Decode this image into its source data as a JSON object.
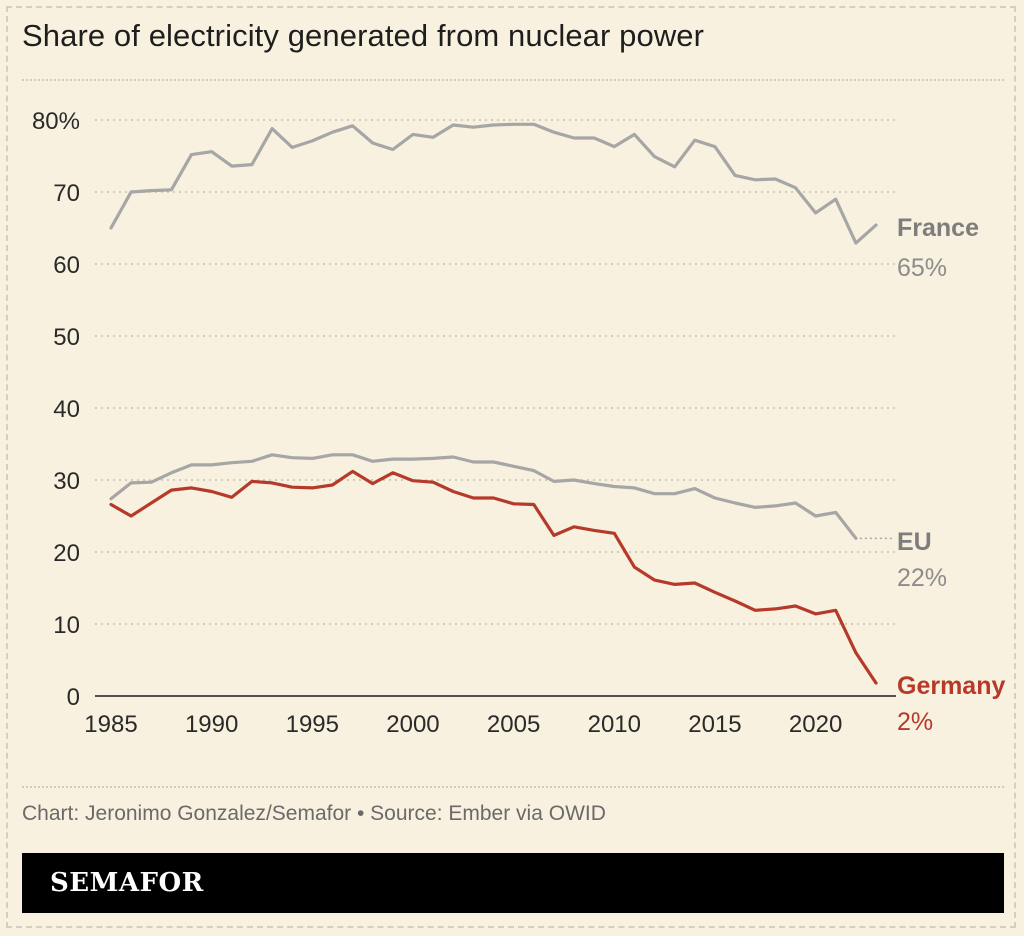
{
  "title": "Share of electricity generated from nuclear power",
  "source": "Chart: Jeronimo Gonzalez/Semafor • Source: Ember via OWID",
  "logo": "SEMAFOR",
  "colors": {
    "background": "#f8f1df",
    "grey_series": "#a6a6a6",
    "germany": "#b53a2a",
    "label_grey": "#7a7a7a"
  },
  "chart_data": {
    "type": "line",
    "title": "Share of electricity generated from nuclear power",
    "xlabel": "",
    "ylabel": "",
    "xlim": [
      1985,
      2023
    ],
    "ylim": [
      0,
      80
    ],
    "x_ticks": [
      "1985",
      "1990",
      "1995",
      "2000",
      "2005",
      "2010",
      "2015",
      "2020"
    ],
    "y_ticks": [
      "0",
      "10",
      "20",
      "30",
      "40",
      "50",
      "60",
      "70",
      "80%"
    ],
    "grid": "horizontal dotted",
    "x": [
      1985,
      1986,
      1987,
      1988,
      1989,
      1990,
      1991,
      1992,
      1993,
      1994,
      1995,
      1996,
      1997,
      1998,
      1999,
      2000,
      2001,
      2002,
      2003,
      2004,
      2005,
      2006,
      2007,
      2008,
      2009,
      2010,
      2011,
      2012,
      2013,
      2014,
      2015,
      2016,
      2017,
      2018,
      2019,
      2020,
      2021,
      2022,
      2023
    ],
    "series": [
      {
        "name": "France",
        "end_label": "65%",
        "values": [
          65,
          70,
          70.2,
          70.3,
          75.2,
          75.6,
          73.6,
          73.8,
          78.8,
          76.2,
          77.1,
          78.3,
          79.2,
          76.8,
          75.9,
          78.0,
          77.6,
          79.3,
          79.0,
          79.3,
          79.4,
          79.4,
          78.3,
          77.5,
          77.5,
          76.3,
          78.0,
          74.9,
          73.5,
          77.2,
          76.3,
          72.3,
          71.7,
          71.8,
          70.6,
          67.1,
          69.0,
          62.9,
          65.4
        ]
      },
      {
        "name": "EU",
        "end_label": "22%",
        "values": [
          27.4,
          29.6,
          29.7,
          31.0,
          32.1,
          32.1,
          32.4,
          32.6,
          33.5,
          33.1,
          33.0,
          33.5,
          33.5,
          32.6,
          32.9,
          32.9,
          33.0,
          33.2,
          32.5,
          32.5,
          31.9,
          31.3,
          29.8,
          30.0,
          29.5,
          29.1,
          28.9,
          28.1,
          28.1,
          28.8,
          27.5,
          26.8,
          26.2,
          26.4,
          26.8,
          25.0,
          25.5,
          21.9,
          null
        ]
      },
      {
        "name": "Germany",
        "end_label": "2%",
        "values": [
          26.6,
          25.0,
          26.8,
          28.6,
          28.9,
          28.4,
          27.6,
          29.8,
          29.6,
          29.0,
          28.9,
          29.3,
          31.2,
          29.5,
          31.0,
          29.9,
          29.7,
          28.4,
          27.5,
          27.5,
          26.7,
          26.6,
          22.3,
          23.5,
          23.0,
          22.6,
          17.9,
          16.1,
          15.5,
          15.7,
          14.4,
          13.2,
          11.9,
          12.1,
          12.5,
          11.4,
          11.9,
          6.0,
          1.8
        ]
      }
    ]
  }
}
